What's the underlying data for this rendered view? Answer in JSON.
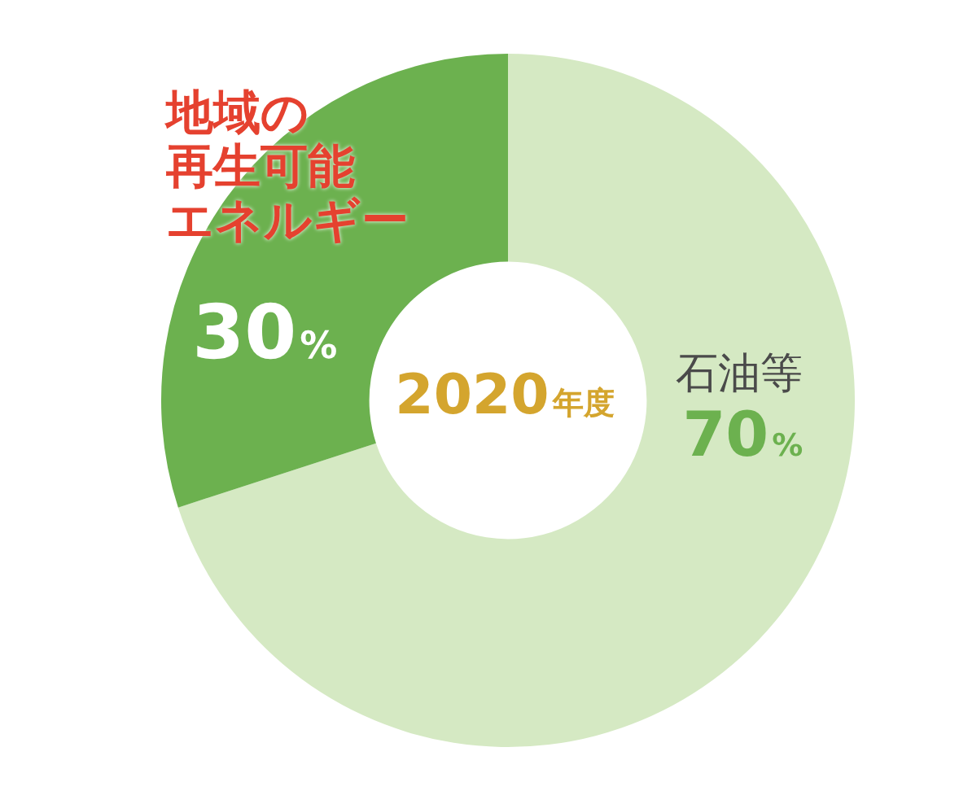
{
  "chart_data": {
    "type": "donut",
    "title": "2020年度",
    "categories": [
      "石油等",
      "地域の再生可能エネルギー"
    ],
    "values": [
      70,
      30
    ],
    "colors": [
      "#d5e9c3",
      "#6cb14f"
    ],
    "value_labels": [
      "70%",
      "30%"
    ]
  }
}
